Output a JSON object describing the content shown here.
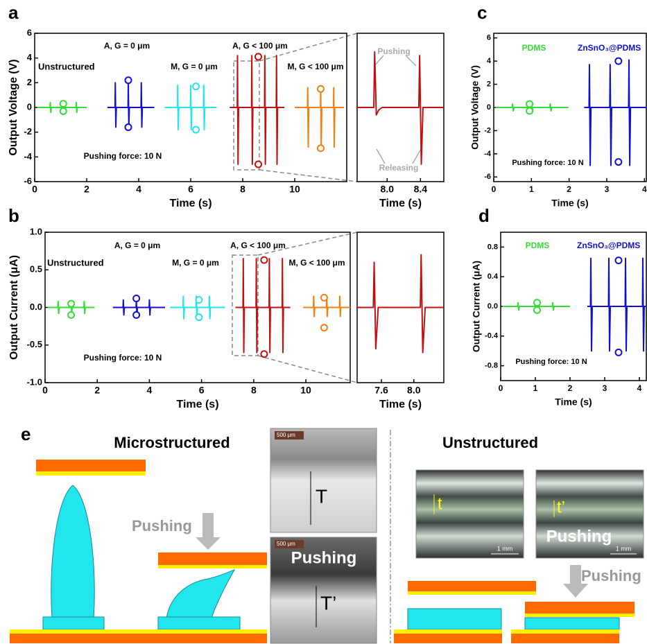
{
  "chart_data": [
    {
      "type": "line",
      "label": "a",
      "xlabel": "Time (s)",
      "ylabel": "Output Voltage (V)",
      "xlim": [
        0,
        12
      ],
      "ylim": [
        -6,
        6
      ],
      "xticks": [
        0,
        2,
        4,
        6,
        8,
        10
      ],
      "yticks": [
        -6,
        -4,
        -2,
        0,
        2,
        4,
        6
      ],
      "annotations": [
        "Unstructured",
        "A, G = 0 μm",
        "M, G = 0 μm",
        "A, G < 100 μm",
        "M, G < 100 μm",
        "Pushing force: 10 N"
      ],
      "series": [
        {
          "color": "#33dd33",
          "x": [
            0.1,
            0.59,
            0.6,
            0.62,
            0.64,
            1.09,
            1.1,
            1.12,
            1.14,
            1.59,
            1.6,
            1.62,
            1.64,
            2.0
          ],
          "values": [
            0,
            0,
            0.4,
            -0.4,
            0,
            0,
            0.4,
            -0.4,
            0,
            0,
            0.4,
            -0.4,
            0,
            0
          ]
        },
        {
          "color": "#1010d0",
          "x": [
            2.8,
            3.09,
            3.1,
            3.12,
            3.14,
            3.59,
            3.6,
            3.62,
            3.64,
            4.09,
            4.1,
            4.12,
            4.14,
            4.6
          ],
          "values": [
            0,
            0,
            2,
            -1.6,
            0,
            0,
            2,
            -1.6,
            0,
            0,
            2,
            -1.6,
            0,
            0
          ]
        },
        {
          "color": "#22e5ee",
          "x": [
            5.0,
            5.49,
            5.5,
            5.52,
            5.54,
            5.99,
            6.0,
            6.02,
            6.04,
            6.49,
            6.5,
            6.52,
            6.54,
            7.0
          ],
          "values": [
            0,
            0,
            1.8,
            -1.8,
            0,
            0,
            1.8,
            -1.8,
            0,
            0,
            1.8,
            -1.8,
            0,
            0
          ]
        },
        {
          "color": "#c01010",
          "x": [
            7.5,
            7.79,
            7.8,
            7.82,
            7.84,
            8.34,
            8.35,
            8.37,
            8.39,
            8.84,
            8.85,
            8.87,
            8.89,
            9.29,
            9.3,
            9.32,
            9.34,
            9.6
          ],
          "values": [
            0,
            0,
            4.2,
            -4.6,
            0,
            0,
            4.2,
            -4.6,
            0,
            0,
            4.2,
            -4.6,
            0,
            0,
            4.2,
            -4.6,
            0,
            0
          ]
        },
        {
          "color": "#f08010",
          "x": [
            10.0,
            10.49,
            10.5,
            10.52,
            10.54,
            10.99,
            11.0,
            11.02,
            11.04,
            11.49,
            11.5,
            11.52,
            11.54,
            11.9
          ],
          "values": [
            0,
            0,
            1.6,
            -3.2,
            0,
            0,
            1.6,
            -3.2,
            0,
            0,
            1.6,
            -3.2,
            0,
            0
          ]
        }
      ],
      "points": [
        {
          "color": "#33dd33",
          "x": [
            1.1,
            1.1
          ],
          "values": [
            0.3,
            -0.3
          ],
          "errors": [
            0.2,
            0.2
          ]
        },
        {
          "color": "#1010d0",
          "x": [
            3.6,
            3.6
          ],
          "values": [
            2.2,
            -1.6
          ],
          "errors": [
            0.2,
            0.2
          ]
        },
        {
          "color": "#22e5ee",
          "x": [
            6.2,
            6.2
          ],
          "values": [
            1.7,
            -1.8
          ],
          "errors": [
            0.2,
            0.2
          ]
        },
        {
          "color": "#c01010",
          "x": [
            8.6,
            8.6
          ],
          "values": [
            4.1,
            -4.6
          ],
          "errors": [
            0.25,
            0.2
          ]
        },
        {
          "color": "#f08010",
          "x": [
            11.0,
            11.0
          ],
          "values": [
            1.5,
            -3.3
          ],
          "errors": [
            0.2,
            0.2
          ]
        }
      ]
    },
    {
      "type": "line",
      "xlabel": "Time (s)",
      "xlim": [
        7.64,
        8.68
      ],
      "ylim": [
        -6,
        6
      ],
      "xticks": [
        {
          "value": 8,
          "label": "8.0"
        },
        8.4
      ],
      "annotations": [
        "Pushing",
        "Releasing"
      ],
      "series": [
        {
          "color": "#c01010",
          "x": [
            7.64,
            7.84,
            7.85,
            7.87,
            7.9,
            7.94,
            8.38,
            8.39,
            8.41,
            8.43,
            8.68
          ],
          "values": [
            0,
            0,
            4.5,
            -0.6,
            -0.2,
            0,
            0,
            4.2,
            -4.6,
            0,
            0
          ]
        }
      ]
    },
    {
      "type": "line",
      "label": "b",
      "xlabel": "Time (s)",
      "ylabel": "Output Current (μA)",
      "xlim": [
        0,
        11.7
      ],
      "ylim": [
        -1,
        1
      ],
      "xticks": [
        0,
        2,
        4,
        6,
        8,
        10
      ],
      "yticks": [
        {
          "value": -1,
          "label": "-1.0"
        },
        -0.5,
        {
          "value": 0,
          "label": "0.0"
        },
        0.5,
        {
          "value": 1,
          "label": "1.0"
        }
      ],
      "annotations": [
        "Unstructured",
        "A, G = 0 μm",
        "M, G = 0 μm",
        "A, G < 100 μm",
        "M, G < 100 μm",
        "Pushing force: 10 N"
      ],
      "series": [
        {
          "color": "#33dd33",
          "x": [
            0.1,
            0.49,
            0.5,
            0.52,
            0.54,
            0.99,
            1.0,
            1.02,
            1.04,
            1.49,
            1.5,
            1.52,
            1.54,
            1.9
          ],
          "values": [
            0,
            0,
            0.08,
            -0.08,
            0,
            0,
            0.08,
            -0.08,
            0,
            0,
            0.08,
            -0.08,
            0,
            0
          ]
        },
        {
          "color": "#1010d0",
          "x": [
            2.6,
            2.99,
            3.0,
            3.02,
            3.04,
            3.49,
            3.5,
            3.52,
            3.54,
            3.99,
            4.0,
            4.02,
            4.04,
            4.6
          ],
          "values": [
            0,
            0,
            0.1,
            -0.1,
            0,
            0,
            0.1,
            -0.1,
            0,
            0,
            0.1,
            -0.1,
            0,
            0
          ]
        },
        {
          "color": "#22e5ee",
          "x": [
            4.8,
            5.29,
            5.3,
            5.32,
            5.34,
            5.79,
            5.8,
            5.82,
            5.84,
            6.29,
            6.3,
            6.32,
            6.34,
            6.9
          ],
          "values": [
            0,
            0,
            0.15,
            -0.15,
            0,
            0,
            0.15,
            -0.15,
            0,
            0,
            0.15,
            -0.15,
            0,
            0
          ]
        },
        {
          "color": "#c01010",
          "x": [
            7.3,
            7.59,
            7.6,
            7.62,
            7.64,
            8.09,
            8.1,
            8.12,
            8.14,
            8.59,
            8.6,
            8.62,
            8.64,
            9.09,
            9.1,
            9.12,
            9.14,
            9.4
          ],
          "values": [
            0,
            0,
            0.65,
            -0.6,
            0,
            0,
            0.65,
            -0.6,
            0,
            0,
            0.65,
            -0.6,
            0,
            0,
            0.65,
            -0.6,
            0,
            0
          ]
        },
        {
          "color": "#f08010",
          "x": [
            9.9,
            10.29,
            10.3,
            10.32,
            10.34,
            10.79,
            10.8,
            10.82,
            10.84,
            11.29,
            11.3,
            11.32,
            11.34,
            11.7
          ],
          "values": [
            0,
            0,
            0.15,
            -0.12,
            0,
            0,
            0.15,
            -0.12,
            0,
            0,
            0.15,
            -0.12,
            0,
            0
          ]
        }
      ],
      "points": [
        {
          "color": "#33dd33",
          "x": [
            1.0,
            1.0
          ],
          "values": [
            0.05,
            -0.1
          ],
          "errors": [
            0.02,
            0.02
          ]
        },
        {
          "color": "#1010d0",
          "x": [
            3.5,
            3.5
          ],
          "values": [
            0.12,
            -0.1
          ],
          "errors": [
            0.02,
            0.02
          ]
        },
        {
          "color": "#22e5ee",
          "x": [
            5.9,
            5.9
          ],
          "values": [
            0.1,
            -0.13
          ],
          "errors": [
            0.02,
            0.02
          ]
        },
        {
          "color": "#c01010",
          "x": [
            8.4,
            8.4
          ],
          "values": [
            0.63,
            -0.62
          ],
          "errors": [
            0.02,
            0.02
          ]
        },
        {
          "color": "#f08010",
          "x": [
            10.7,
            10.7
          ],
          "values": [
            0.13,
            -0.27
          ],
          "errors": [
            0.02,
            0.02
          ]
        }
      ]
    },
    {
      "type": "line",
      "xlabel": "Time (s)",
      "xlim": [
        7.3,
        8.37
      ],
      "ylim": [
        -1,
        1
      ],
      "xticks": [
        7.6,
        {
          "value": 8,
          "label": "8.0"
        }
      ],
      "series": [
        {
          "color": "#c01010",
          "x": [
            7.3,
            7.5,
            7.51,
            7.53,
            7.56,
            8.08,
            8.09,
            8.11,
            8.14,
            8.37
          ],
          "values": [
            0,
            0,
            0.6,
            -0.55,
            0,
            0,
            0.7,
            -0.6,
            0,
            0
          ]
        }
      ]
    },
    {
      "type": "line",
      "label": "c",
      "xlabel": "Time (s)",
      "ylabel": "Output Voltage (V)",
      "xlim": [
        0,
        4.05
      ],
      "ylim": [
        -6.4,
        6.4
      ],
      "xticks": [
        0,
        1,
        2,
        3,
        4
      ],
      "yticks": [
        -6,
        -4,
        -2,
        0,
        2,
        4,
        6
      ],
      "annotations": [
        "PDMS",
        "ZnSnO₃@PDMS",
        "Pushing force: 10 N"
      ],
      "series": [
        {
          "color": "#33dd33",
          "x": [
            0.05,
            0.49,
            0.5,
            0.52,
            0.54,
            0.99,
            1.0,
            1.02,
            1.04,
            1.49,
            1.5,
            1.52,
            1.54,
            1.98
          ],
          "values": [
            0,
            0,
            0.3,
            -0.3,
            0,
            0,
            0.3,
            -0.3,
            0,
            0,
            0.3,
            -0.3,
            0,
            0
          ]
        },
        {
          "color": "#1010d0",
          "x": [
            2.4,
            2.53,
            2.54,
            2.56,
            2.58,
            3.08,
            3.09,
            3.11,
            3.13,
            3.58,
            3.59,
            3.61,
            3.63,
            4.05
          ],
          "values": [
            0,
            0,
            3.7,
            -5,
            0,
            0,
            3.7,
            -5,
            0,
            0,
            4.1,
            -5,
            0,
            0
          ]
        }
      ],
      "points": [
        {
          "color": "#33dd33",
          "x": [
            0.95,
            0.95
          ],
          "values": [
            0.3,
            -0.3
          ],
          "errors": [
            0.2,
            0.2
          ]
        },
        {
          "color": "#1010d0",
          "x": [
            3.31,
            3.31
          ],
          "values": [
            4.0,
            -4.7
          ],
          "errors": [
            0.25,
            0.25
          ]
        }
      ]
    },
    {
      "type": "line",
      "label": "d",
      "xlabel": "Time (s)",
      "ylabel": "Output Current (μA)",
      "xlim": [
        0,
        4.2
      ],
      "ylim": [
        -1,
        1
      ],
      "xticks": [
        0,
        1,
        2,
        3,
        4
      ],
      "yticks": [
        -0.8,
        -0.4,
        {
          "value": 0,
          "label": "0.0"
        },
        0.4,
        0.8
      ],
      "annotations": [
        "PDMS",
        "ZnSnO₃@PDMS",
        "Pushing force: 10 N"
      ],
      "series": [
        {
          "color": "#33dd33",
          "x": [
            0.05,
            0.49,
            0.5,
            0.52,
            0.54,
            0.99,
            1.0,
            1.02,
            1.04,
            1.49,
            1.5,
            1.52,
            1.54,
            2.0
          ],
          "values": [
            0,
            0,
            0.05,
            -0.05,
            0,
            0,
            0.05,
            -0.05,
            0,
            0,
            0.05,
            -0.05,
            0,
            0
          ]
        },
        {
          "color": "#1010d0",
          "x": [
            2.5,
            2.59,
            2.6,
            2.62,
            2.64,
            3.11,
            3.12,
            3.14,
            3.16,
            3.59,
            3.6,
            3.62,
            3.64,
            4.09,
            4.1,
            4.12,
            4.14,
            4.2
          ],
          "values": [
            0,
            0,
            0.65,
            -0.6,
            0,
            0,
            0.65,
            -0.6,
            0,
            0,
            0.65,
            -0.6,
            0,
            0,
            0.65,
            -0.6,
            0,
            0
          ]
        }
      ],
      "points": [
        {
          "color": "#33dd33",
          "x": [
            1.05,
            1.05
          ],
          "values": [
            0.05,
            -0.05
          ],
          "errors": [
            0.02,
            0.02
          ]
        },
        {
          "color": "#1010d0",
          "x": [
            3.4,
            3.4
          ],
          "values": [
            0.62,
            -0.62
          ],
          "errors": [
            0.02,
            0.02
          ]
        }
      ]
    }
  ],
  "diagram": {
    "label": "e",
    "microstructured": {
      "title": "Microstructured",
      "arrow": "Pushing",
      "photo_top": {
        "scale": "500 μm",
        "thickness": "T"
      },
      "photo_bottom": {
        "scale": "500 μm",
        "caption": "Pushing",
        "thickness": "T’"
      }
    },
    "unstructured": {
      "title": "Unstructured",
      "arrow": "Pushing",
      "photo_left": {
        "thickness": "t",
        "scale": "1 mm"
      },
      "photo_right": {
        "thickness": "t’",
        "caption": "Pushing",
        "scale": "1 mm"
      }
    }
  }
}
